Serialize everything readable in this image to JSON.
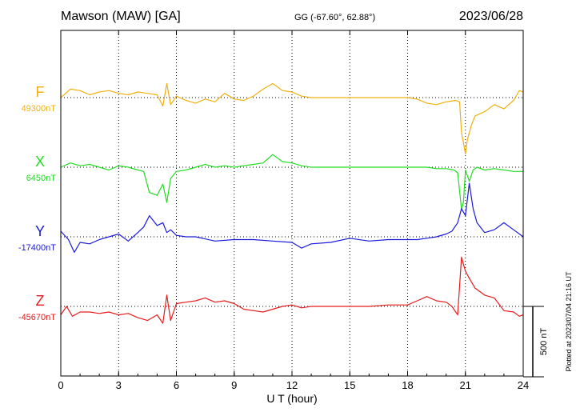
{
  "header": {
    "station": "Mawson (MAW)  [GA]",
    "coords": "GG (-67.60°,  62.88°)",
    "date": "2023/06/28"
  },
  "footer": {
    "plotted": "Plotted at 2023/07/04 21:16 UT"
  },
  "chart_data": {
    "type": "line",
    "title": "Mawson (MAW)  [GA]",
    "xlabel": "U T (hour)",
    "xlim": [
      0,
      24
    ],
    "xticks": [
      "0",
      "3",
      "6",
      "9",
      "12",
      "15",
      "18",
      "21",
      "24"
    ],
    "grid": true,
    "scale_bar": {
      "label": "500 nT",
      "value_nT": 500
    },
    "series": [
      {
        "name": "F",
        "baseline_label": "49300nT",
        "color": "#f0b010",
        "x": [
          0,
          0.5,
          1,
          1.5,
          2,
          2.5,
          3,
          3.5,
          4,
          4.5,
          5,
          5.3,
          5.5,
          5.7,
          6,
          6.5,
          7,
          7.5,
          8,
          8.5,
          9,
          9.5,
          10,
          10.5,
          11,
          11.5,
          12,
          12.5,
          13,
          13.5,
          14,
          15,
          16,
          17,
          18,
          18.5,
          19,
          19.5,
          20,
          20.5,
          20.7,
          20.8,
          20.9,
          21,
          21.1,
          21.3,
          21.5,
          22,
          22.5,
          23,
          23.5,
          23.8,
          24
        ],
        "values": [
          0,
          60,
          50,
          20,
          40,
          50,
          30,
          20,
          40,
          30,
          20,
          -60,
          100,
          -50,
          10,
          -20,
          -40,
          -10,
          -30,
          30,
          -10,
          -20,
          10,
          60,
          100,
          50,
          40,
          10,
          0,
          0,
          0,
          0,
          0,
          0,
          0,
          -10,
          -40,
          -50,
          -30,
          -20,
          -30,
          -250,
          -320,
          -400,
          -300,
          -200,
          -130,
          -100,
          -50,
          -80,
          -20,
          50,
          40
        ]
      },
      {
        "name": "X",
        "baseline_label": "6450nT",
        "color": "#22dd22",
        "x": [
          0,
          0.5,
          1,
          1.5,
          2,
          2.5,
          3,
          3.5,
          4,
          4.3,
          4.6,
          5,
          5.3,
          5.5,
          5.7,
          6,
          6.5,
          7,
          7.5,
          8,
          8.5,
          9,
          9.5,
          10,
          10.5,
          11,
          11.5,
          12,
          12.5,
          13,
          14,
          15,
          16,
          17,
          18,
          18.5,
          19,
          19.5,
          20,
          20.4,
          20.6,
          20.8,
          20.9,
          21,
          21.2,
          21.4,
          21.6,
          22,
          22.5,
          23,
          23.5,
          24
        ],
        "values": [
          0,
          30,
          10,
          20,
          0,
          -20,
          10,
          0,
          -20,
          -30,
          -180,
          -200,
          -120,
          -250,
          -80,
          -30,
          -20,
          0,
          20,
          0,
          10,
          0,
          10,
          20,
          30,
          90,
          40,
          30,
          10,
          0,
          0,
          0,
          0,
          0,
          0,
          0,
          0,
          -10,
          -10,
          -20,
          -40,
          -300,
          -250,
          -20,
          -100,
          -20,
          0,
          -20,
          -10,
          -20,
          -30,
          -30
        ]
      },
      {
        "name": "Y",
        "baseline_label": "-17400nT",
        "color": "#1a1adc",
        "x": [
          0,
          0.4,
          0.7,
          1,
          1.5,
          2,
          2.5,
          3,
          3.5,
          4,
          4.3,
          4.6,
          5,
          5.3,
          5.5,
          5.7,
          6,
          6.5,
          7,
          8,
          9,
          10,
          11,
          12,
          12.5,
          13,
          14,
          15,
          16,
          17,
          18,
          18.5,
          19,
          19.5,
          20,
          20.3,
          20.6,
          20.8,
          21,
          21.2,
          21.4,
          21.6,
          22,
          22.5,
          23,
          23.5,
          24
        ],
        "values": [
          40,
          -20,
          -110,
          -40,
          -50,
          -20,
          0,
          20,
          -30,
          30,
          70,
          150,
          80,
          100,
          30,
          50,
          10,
          0,
          0,
          -30,
          -20,
          -20,
          -30,
          -40,
          -80,
          -50,
          -40,
          -10,
          -30,
          -20,
          -20,
          -20,
          -10,
          0,
          20,
          40,
          100,
          200,
          150,
          380,
          200,
          100,
          30,
          50,
          100,
          50,
          0
        ]
      },
      {
        "name": "Z",
        "baseline_label": "-45670nT",
        "color": "#e61c1c",
        "x": [
          0,
          0.3,
          0.6,
          1,
          1.5,
          2,
          2.5,
          3,
          3.5,
          4,
          4.5,
          5,
          5.3,
          5.5,
          5.7,
          6,
          6.5,
          7,
          7.5,
          8,
          8.5,
          9,
          9.5,
          10,
          10.5,
          11,
          11.5,
          12,
          12.5,
          13,
          14,
          15,
          16,
          17,
          18,
          18.5,
          19,
          19.5,
          20,
          20.3,
          20.6,
          20.8,
          20.9,
          21,
          21.2,
          21.5,
          22,
          22.5,
          23,
          23.5,
          23.8,
          24
        ],
        "values": [
          -60,
          0,
          -70,
          -40,
          -40,
          -50,
          -40,
          -60,
          -50,
          -80,
          -100,
          -60,
          -120,
          80,
          -100,
          20,
          30,
          40,
          60,
          30,
          40,
          20,
          -20,
          -30,
          -40,
          -20,
          0,
          10,
          -10,
          0,
          0,
          0,
          0,
          10,
          10,
          40,
          70,
          40,
          30,
          0,
          -60,
          350,
          300,
          250,
          200,
          130,
          80,
          60,
          -30,
          -40,
          -70,
          -60
        ]
      }
    ]
  }
}
